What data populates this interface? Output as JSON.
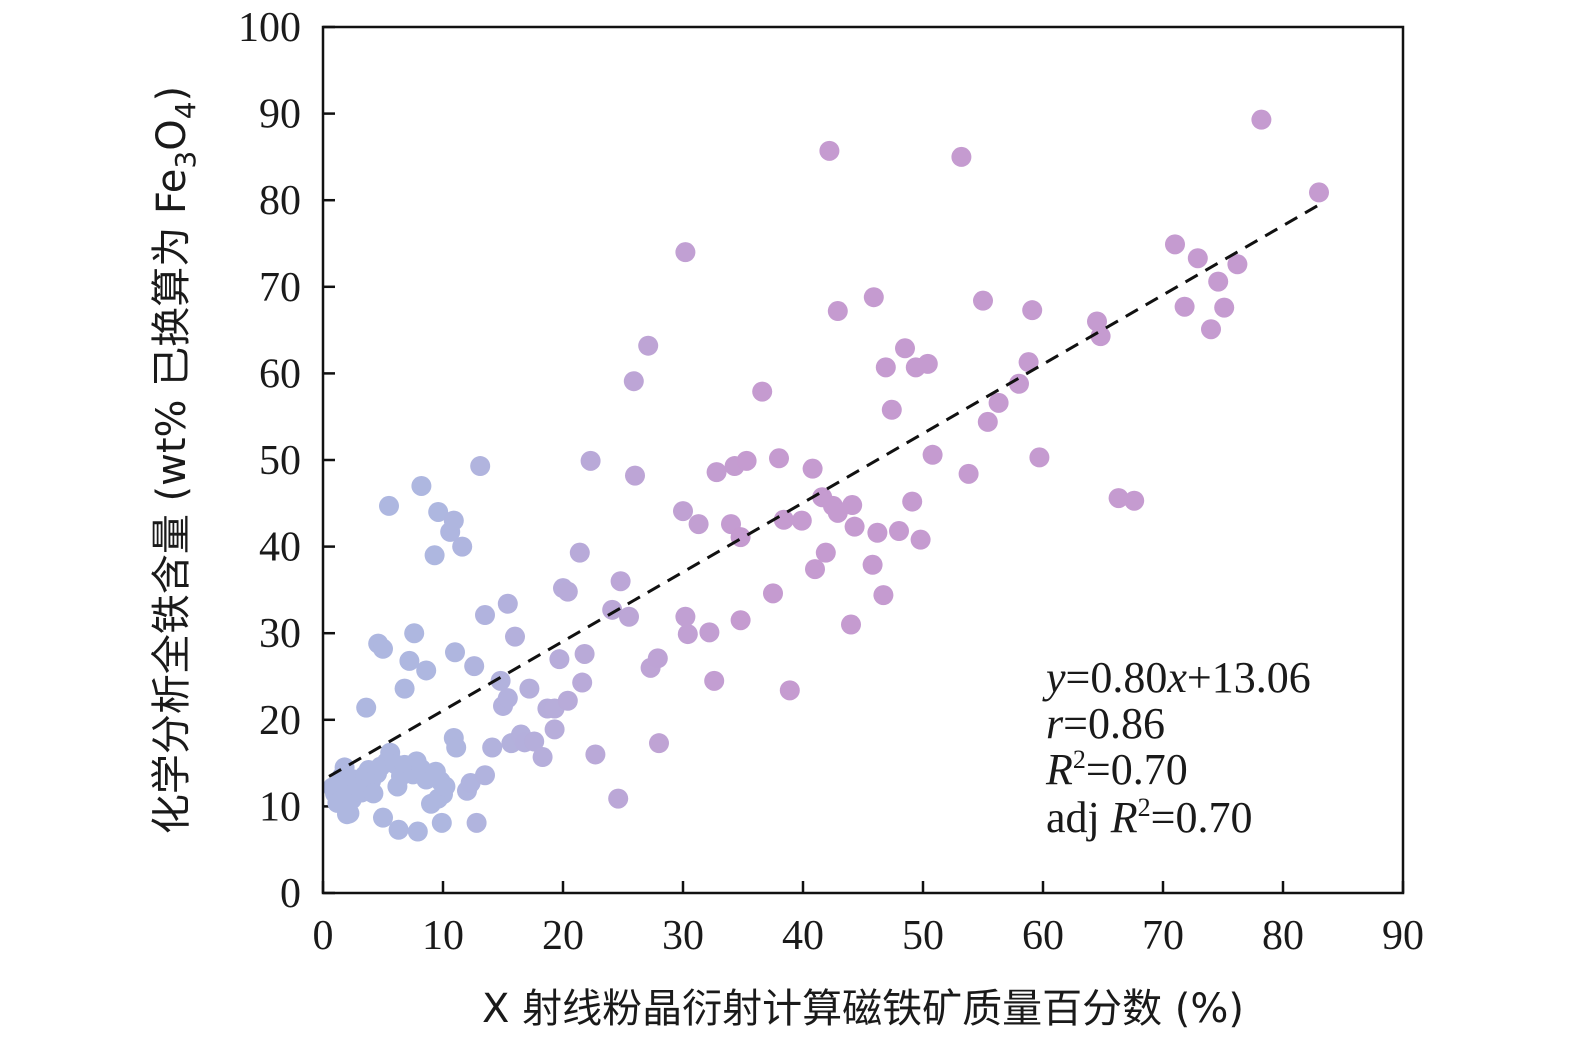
{
  "chart_data": {
    "type": "scatter",
    "xlabel": "X 射线粉晶衍射计算磁铁矿质量百分数 (%)",
    "ylabel_main": "化学分析全铁含量 (wt% 已换算为 Fe",
    "ylabel_sub1": "3",
    "ylabel_mid": "O",
    "ylabel_sub2": "4",
    "ylabel_end": ")",
    "xlim": [
      0,
      90
    ],
    "ylim": [
      0,
      100
    ],
    "xticks": [
      "0",
      "10",
      "20",
      "30",
      "40",
      "50",
      "60",
      "70",
      "80",
      "90"
    ],
    "yticks": [
      "0",
      "10",
      "20",
      "30",
      "40",
      "50",
      "60",
      "70",
      "80",
      "90",
      "100"
    ],
    "colors": {
      "low": "#aeb7e0",
      "high": "#c59bd0",
      "fit": "#111111",
      "axis": "#111111"
    },
    "fit": {
      "slope": 0.8,
      "intercept": 13.06,
      "x_range": [
        0.5,
        83
      ]
    },
    "annotations": {
      "eq_y": "y",
      "eq_rest": "=0.80",
      "eq_x": "x",
      "eq_end": "+13.06",
      "r_var": "r",
      "r_val": "=0.86",
      "r2_var": "R",
      "r2_sup": "2",
      "r2_val": "=0.70",
      "adj_prefix": "adj ",
      "adj_var": "R",
      "adj_sup": "2",
      "adj_val": "=0.70"
    },
    "points": [
      [
        0.8,
        12.2
      ],
      [
        1.0,
        11.5
      ],
      [
        1.2,
        10.4
      ],
      [
        1.4,
        12.8
      ],
      [
        1.6,
        13.5
      ],
      [
        1.8,
        14.5
      ],
      [
        2.0,
        11.8
      ],
      [
        2.2,
        9.2
      ],
      [
        2.4,
        10.8
      ],
      [
        2.6,
        13.1
      ],
      [
        2.9,
        12.4
      ],
      [
        3.2,
        11.6
      ],
      [
        3.5,
        13.6
      ],
      [
        3.8,
        14.2
      ],
      [
        4.0,
        12.9
      ],
      [
        4.2,
        11.5
      ],
      [
        4.5,
        13.8
      ],
      [
        4.8,
        14.6
      ],
      [
        5.0,
        8.7
      ],
      [
        5.3,
        15.1
      ],
      [
        5.6,
        16.2
      ],
      [
        6.0,
        14.9
      ],
      [
        6.2,
        12.3
      ],
      [
        6.5,
        13.5
      ],
      [
        6.8,
        14.8
      ],
      [
        7.0,
        13.9
      ],
      [
        7.5,
        13.7
      ],
      [
        7.8,
        15.2
      ],
      [
        8.2,
        14.3
      ],
      [
        8.6,
        13.1
      ],
      [
        9.0,
        10.3
      ],
      [
        9.4,
        14.0
      ],
      [
        9.6,
        10.9
      ],
      [
        9.8,
        12.9
      ],
      [
        10.0,
        11.4
      ],
      [
        10.2,
        12.3
      ],
      [
        6.3,
        7.3
      ],
      [
        7.9,
        7.1
      ],
      [
        9.9,
        8.1
      ],
      [
        12.8,
        8.1
      ],
      [
        2.0,
        9.1
      ],
      [
        3.6,
        21.4
      ],
      [
        4.6,
        28.8
      ],
      [
        5.0,
        28.2
      ],
      [
        6.8,
        23.6
      ],
      [
        7.2,
        26.8
      ],
      [
        7.6,
        30.0
      ],
      [
        8.6,
        25.7
      ],
      [
        5.5,
        44.7
      ],
      [
        8.2,
        47.0
      ],
      [
        9.6,
        44.0
      ],
      [
        10.6,
        41.7
      ],
      [
        10.9,
        43.0
      ],
      [
        11.6,
        40.0
      ],
      [
        9.3,
        39.0
      ],
      [
        10.9,
        17.9
      ],
      [
        11.1,
        16.8
      ],
      [
        11.0,
        27.8
      ],
      [
        12.0,
        11.8
      ],
      [
        12.3,
        12.7
      ],
      [
        12.6,
        26.2
      ],
      [
        13.1,
        49.3
      ],
      [
        13.5,
        13.6
      ],
      [
        13.5,
        32.1
      ],
      [
        14.1,
        16.8
      ],
      [
        14.8,
        24.5
      ],
      [
        15.0,
        21.6
      ],
      [
        15.4,
        22.5
      ],
      [
        15.4,
        33.4
      ],
      [
        15.7,
        17.3
      ],
      [
        16.0,
        29.6
      ],
      [
        16.5,
        18.3
      ],
      [
        16.8,
        17.4
      ],
      [
        17.2,
        23.6
      ],
      [
        17.6,
        17.5
      ],
      [
        18.3,
        15.7
      ],
      [
        18.7,
        21.3
      ],
      [
        19.3,
        21.3
      ],
      [
        19.3,
        18.9
      ],
      [
        19.7,
        27.0
      ],
      [
        20.0,
        35.2
      ],
      [
        20.4,
        22.2
      ],
      [
        20.4,
        34.8
      ],
      [
        21.4,
        39.3
      ],
      [
        21.6,
        24.3
      ],
      [
        21.8,
        27.6
      ],
      [
        22.3,
        49.9
      ],
      [
        22.7,
        16.0
      ],
      [
        24.1,
        32.7
      ],
      [
        24.6,
        10.9
      ],
      [
        24.8,
        36.0
      ],
      [
        25.5,
        31.9
      ],
      [
        25.9,
        59.1
      ],
      [
        26.0,
        48.2
      ],
      [
        27.1,
        63.2
      ],
      [
        27.3,
        26.0
      ],
      [
        27.9,
        27.1
      ],
      [
        28.0,
        17.3
      ],
      [
        30.0,
        44.1
      ],
      [
        30.2,
        74.0
      ],
      [
        30.2,
        31.9
      ],
      [
        30.4,
        29.9
      ],
      [
        31.3,
        42.6
      ],
      [
        32.2,
        30.1
      ],
      [
        32.6,
        24.5
      ],
      [
        32.8,
        48.6
      ],
      [
        34.0,
        42.6
      ],
      [
        34.3,
        49.3
      ],
      [
        34.8,
        41.1
      ],
      [
        34.8,
        31.5
      ],
      [
        35.3,
        49.9
      ],
      [
        36.6,
        57.9
      ],
      [
        37.5,
        34.6
      ],
      [
        38.0,
        50.2
      ],
      [
        38.4,
        43.1
      ],
      [
        38.9,
        23.4
      ],
      [
        39.9,
        43.0
      ],
      [
        40.8,
        49.0
      ],
      [
        41.0,
        37.4
      ],
      [
        41.6,
        45.7
      ],
      [
        41.9,
        39.3
      ],
      [
        42.2,
        85.7
      ],
      [
        42.5,
        44.7
      ],
      [
        42.9,
        43.9
      ],
      [
        42.9,
        67.2
      ],
      [
        44.0,
        31.0
      ],
      [
        44.1,
        44.8
      ],
      [
        44.3,
        42.3
      ],
      [
        45.8,
        37.9
      ],
      [
        45.9,
        68.8
      ],
      [
        46.2,
        41.6
      ],
      [
        46.7,
        34.4
      ],
      [
        46.9,
        60.7
      ],
      [
        47.4,
        55.8
      ],
      [
        48.0,
        41.8
      ],
      [
        48.5,
        62.9
      ],
      [
        49.1,
        45.2
      ],
      [
        49.4,
        60.7
      ],
      [
        49.8,
        40.8
      ],
      [
        50.4,
        61.1
      ],
      [
        50.8,
        50.6
      ],
      [
        53.2,
        85.0
      ],
      [
        53.8,
        48.4
      ],
      [
        55.0,
        68.4
      ],
      [
        55.4,
        54.4
      ],
      [
        56.3,
        56.6
      ],
      [
        58.0,
        58.8
      ],
      [
        58.8,
        61.3
      ],
      [
        59.1,
        67.3
      ],
      [
        59.7,
        50.3
      ],
      [
        64.5,
        66.0
      ],
      [
        64.8,
        64.3
      ],
      [
        66.3,
        45.6
      ],
      [
        67.6,
        45.3
      ],
      [
        71.0,
        74.9
      ],
      [
        71.8,
        67.7
      ],
      [
        72.9,
        73.3
      ],
      [
        74.0,
        65.1
      ],
      [
        74.6,
        70.6
      ],
      [
        75.1,
        67.6
      ],
      [
        76.2,
        72.6
      ],
      [
        78.2,
        89.3
      ],
      [
        83.0,
        80.9
      ]
    ]
  }
}
